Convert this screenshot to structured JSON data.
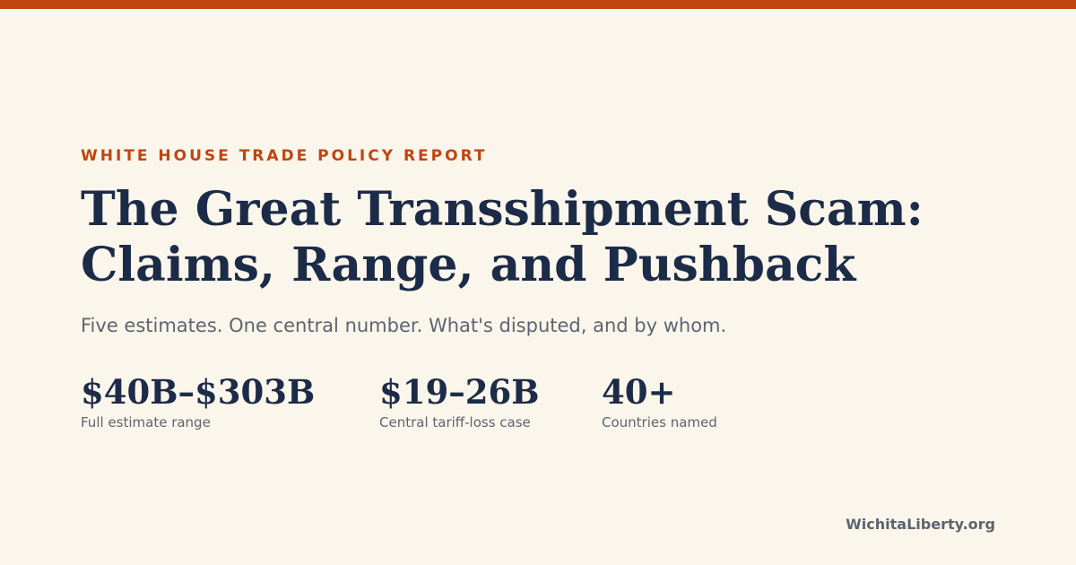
{
  "kicker": "WHITE HOUSE TRADE POLICY REPORT",
  "title": {
    "line1": "The Great Transshipment Scam:",
    "line2": "Claims, Range, and Pushback"
  },
  "subtitle": "Five estimates. One central number. What's disputed, and by whom.",
  "stats": [
    {
      "value": "$40B–$303B",
      "label": "Full estimate range"
    },
    {
      "value": "$19–26B",
      "label": "Central tariff-loss case"
    },
    {
      "value": "40+",
      "label": "Countries named"
    }
  ],
  "footer": {
    "site": "WichitaLiberty.org"
  },
  "colors": {
    "accent": "#c2440e",
    "heading": "#1c2b47",
    "muted": "#5d6470",
    "background": "#faf6eb"
  }
}
